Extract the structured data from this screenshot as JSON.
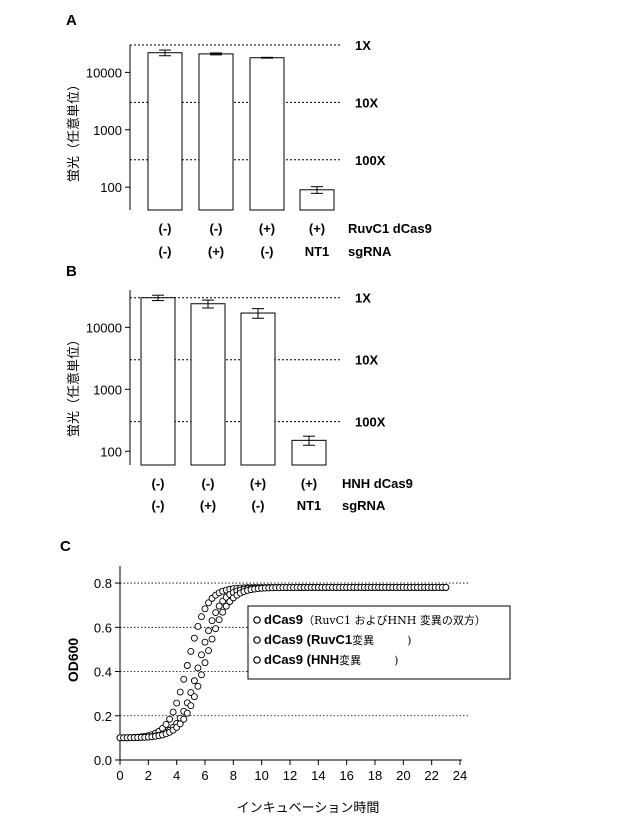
{
  "chart_data": [
    {
      "panel_label": "A",
      "type": "bar",
      "yscale": "log",
      "ylim": [
        40,
        30000
      ],
      "ylabel": "蛍光（任意単位）",
      "yticks": [
        "100",
        "1000",
        "10000"
      ],
      "values": [
        22000,
        21000,
        18000,
        90
      ],
      "error": [
        2500,
        800,
        300,
        12
      ],
      "ref_lines": [
        {
          "value": 30000,
          "label": "1X"
        },
        {
          "value": 3000,
          "label": "10X"
        },
        {
          "value": 300,
          "label": "100X"
        }
      ],
      "row1_label": "RuvC1 dCas9",
      "row2_label": "sgRNA",
      "row1": [
        "(-)",
        "(-)",
        "(+)",
        "(+)"
      ],
      "row2": [
        "(-)",
        "(+)",
        "(-)",
        "NT1"
      ]
    },
    {
      "panel_label": "B",
      "type": "bar",
      "yscale": "log",
      "ylim": [
        60,
        40000
      ],
      "ylabel": "蛍光（任意単位）",
      "yticks": [
        "100",
        "1000",
        "10000"
      ],
      "values": [
        30000,
        24000,
        17000,
        150
      ],
      "error": [
        3000,
        3500,
        3000,
        25
      ],
      "ref_lines": [
        {
          "value": 30000,
          "label": "1X"
        },
        {
          "value": 3000,
          "label": "10X"
        },
        {
          "value": 300,
          "label": "100X"
        }
      ],
      "row1_label": "HNH dCas9",
      "row2_label": "sgRNA",
      "row1": [
        "(-)",
        "(-)",
        "(+)",
        "(+)"
      ],
      "row2": [
        "(-)",
        "(+)",
        "(-)",
        "NT1"
      ]
    },
    {
      "panel_label": "C",
      "type": "scatter",
      "xlabel": "インキュベーション時間",
      "ylabel": "OD600",
      "xlim": [
        0,
        24
      ],
      "ylim": [
        0,
        0.85
      ],
      "xticks": [
        "0",
        "2",
        "4",
        "6",
        "8",
        "10",
        "12",
        "14",
        "16",
        "18",
        "20",
        "22",
        "24"
      ],
      "yticks": [
        "0.0",
        "0.2",
        "0.4",
        "0.6",
        "0.8"
      ],
      "grid": true,
      "legend": {
        "placement": "right-middle",
        "items": [
          {
            "bold": "dCas9",
            "rest": "（RuvC1 およびHNH 変異の双方）"
          },
          {
            "bold": "dCas9 (RuvC1",
            "rest": "変異　　　)"
          },
          {
            "bold": "dCas9 (HNH",
            "rest": "変異　　　)"
          }
        ]
      },
      "series": [
        {
          "midpoint": 4.8,
          "rate": 1.5,
          "ymin": 0.1,
          "ymax": 0.78
        },
        {
          "midpoint": 5.6,
          "rate": 1.4,
          "ymin": 0.1,
          "ymax": 0.78
        },
        {
          "midpoint": 6.0,
          "rate": 1.3,
          "ymin": 0.1,
          "ymax": 0.78
        }
      ],
      "x_range": [
        0,
        23.2
      ],
      "x_step": 0.25
    }
  ]
}
